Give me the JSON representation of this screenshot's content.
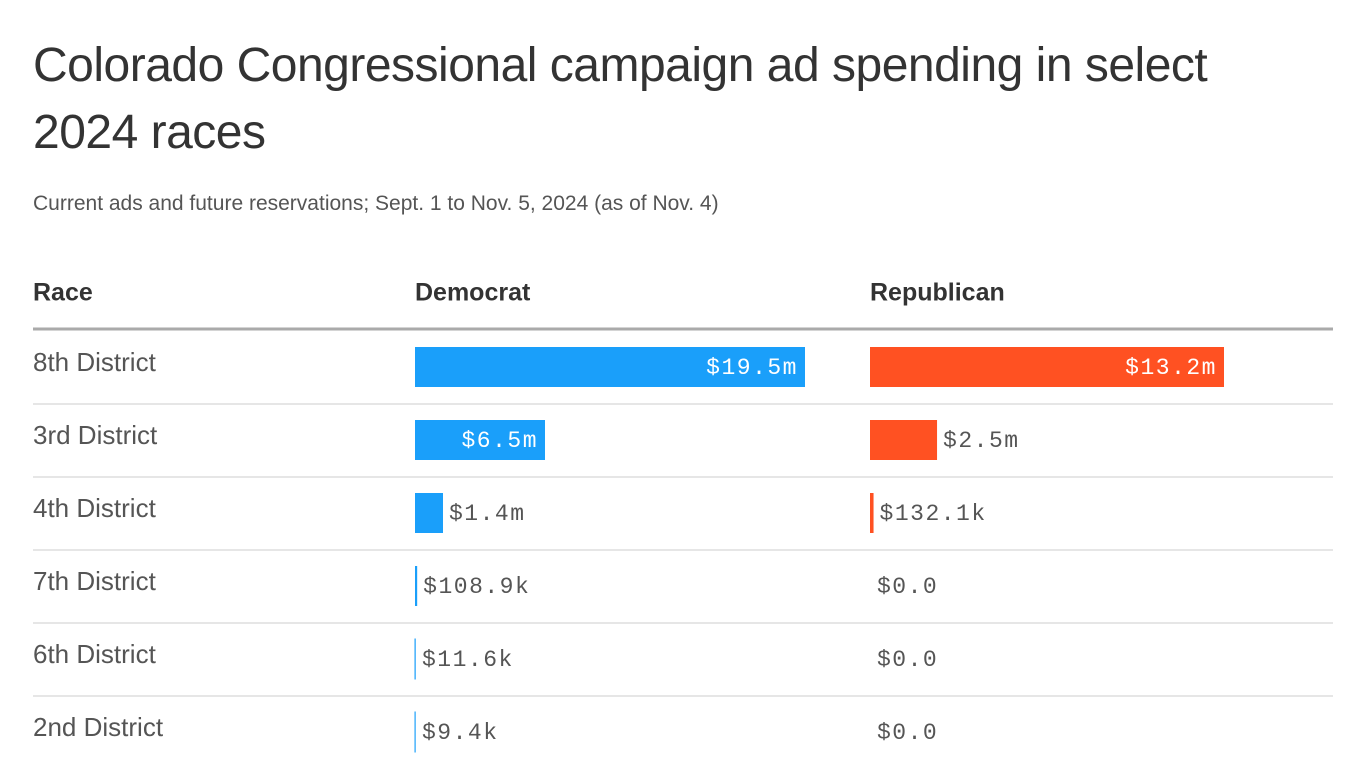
{
  "chart_data": {
    "type": "bar-table",
    "title": "Colorado Congressional campaign ad spending in select 2024 races",
    "subtitle": "Current ads and future reservations; Sept. 1 to Nov. 5, 2024 (as of Nov. 4)",
    "category_label": "Race",
    "categories": [
      "8th District",
      "3rd District",
      "4th District",
      "7th District",
      "6th District",
      "2nd District"
    ],
    "series": [
      {
        "name": "Democrat",
        "color": "#1a9ffa",
        "values": [
          19500000,
          6500000,
          1400000,
          108900,
          11600,
          9400
        ],
        "value_labels": [
          "$19.5m",
          "$6.5m",
          "$1.4m",
          "$108.9k",
          "$11.6k",
          "$9.4k"
        ]
      },
      {
        "name": "Republican",
        "color": "#ff5122",
        "values": [
          13200000,
          2500000,
          132100,
          0,
          0,
          0
        ],
        "value_labels": [
          "$13.2m",
          "$2.5m",
          "$132.1k",
          "$0.0",
          "$0.0",
          "$0.0"
        ]
      }
    ]
  }
}
